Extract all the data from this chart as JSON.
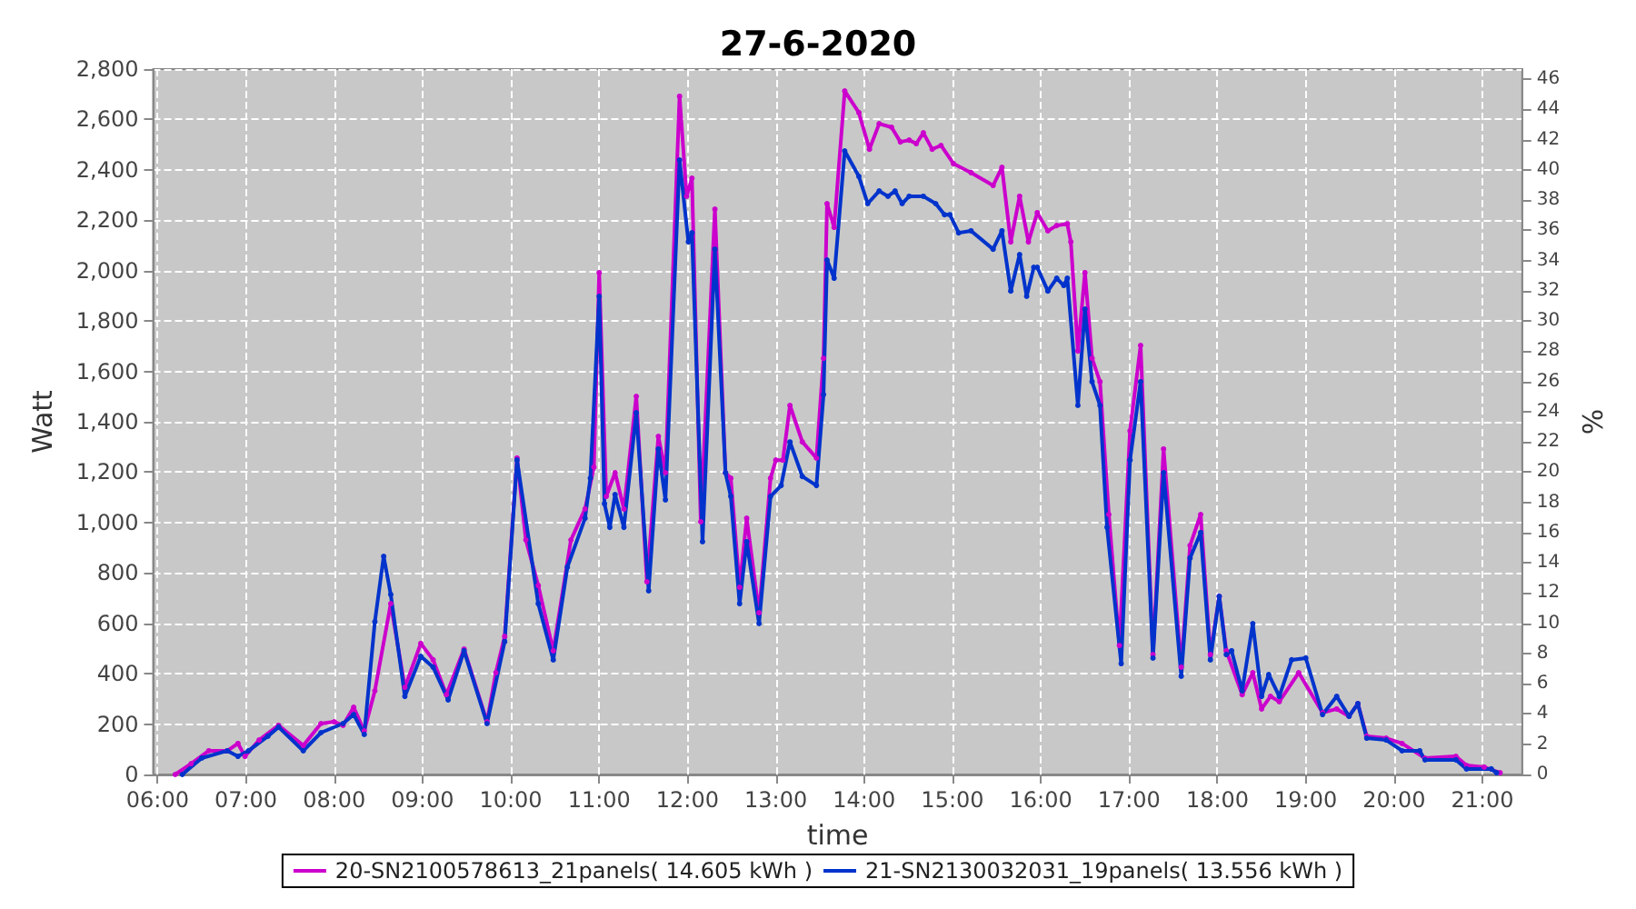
{
  "chart_data": {
    "type": "line",
    "title": "27-6-2020",
    "xlabel": "time",
    "ylabel": "Watt",
    "y2label": "%",
    "xlim": [
      5.95,
      21.45
    ],
    "xticks": [
      {
        "value": 6,
        "label": "06:00"
      },
      {
        "value": 7,
        "label": "07:00"
      },
      {
        "value": 8,
        "label": "08:00"
      },
      {
        "value": 9,
        "label": "09:00"
      },
      {
        "value": 10,
        "label": "10:00"
      },
      {
        "value": 11,
        "label": "11:00"
      },
      {
        "value": 12,
        "label": "12:00"
      },
      {
        "value": 13,
        "label": "13:00"
      },
      {
        "value": 14,
        "label": "14:00"
      },
      {
        "value": 15,
        "label": "15:00"
      },
      {
        "value": 16,
        "label": "16:00"
      },
      {
        "value": 17,
        "label": "17:00"
      },
      {
        "value": 18,
        "label": "18:00"
      },
      {
        "value": 19,
        "label": "19:00"
      },
      {
        "value": 20,
        "label": "20:00"
      },
      {
        "value": 21,
        "label": "21:00"
      }
    ],
    "ylim": [
      0,
      2800
    ],
    "yticks": [
      0,
      200,
      400,
      600,
      800,
      {
        "value": 1000,
        "label": "1,000"
      },
      {
        "value": 1200,
        "label": "1,200"
      },
      {
        "value": 1400,
        "label": "1,400"
      },
      {
        "value": 1600,
        "label": "1,600"
      },
      {
        "value": 1800,
        "label": "1,800"
      },
      {
        "value": 2000,
        "label": "2,000"
      },
      {
        "value": 2200,
        "label": "2,200"
      },
      {
        "value": 2400,
        "label": "2,400"
      },
      {
        "value": 2600,
        "label": "2,600"
      },
      {
        "value": 2800,
        "label": "2,800"
      }
    ],
    "y2lim": [
      0,
      46.67
    ],
    "y2ticks": [
      0,
      2,
      4,
      6,
      8,
      10,
      12,
      14,
      16,
      18,
      20,
      22,
      24,
      26,
      28,
      30,
      32,
      34,
      36,
      38,
      40,
      42,
      44,
      46
    ],
    "grid": true,
    "legend": "bottom",
    "marker": "circle",
    "line_style": "solid",
    "series": [
      {
        "name": "20-SN2100578613_21panels( 14.605 kWh )",
        "color": "#cc00cc",
        "x": [
          6.2,
          6.38,
          6.58,
          6.79,
          6.91,
          6.99,
          7.15,
          7.37,
          7.65,
          7.85,
          8.0,
          8.1,
          8.22,
          8.34,
          8.46,
          8.64,
          8.8,
          8.98,
          9.12,
          9.27,
          9.47,
          9.73,
          9.83,
          9.93,
          10.07,
          10.17,
          10.31,
          10.48,
          10.68,
          10.84,
          10.94,
          11.0,
          11.08,
          11.18,
          11.28,
          11.42,
          11.54,
          11.67,
          11.75,
          11.91,
          11.99,
          12.05,
          12.15,
          12.31,
          12.43,
          12.49,
          12.59,
          12.67,
          12.81,
          12.94,
          13.0,
          13.08,
          13.16,
          13.3,
          13.46,
          13.54,
          13.58,
          13.66,
          13.78,
          13.94,
          14.06,
          14.17,
          14.31,
          14.41,
          14.51,
          14.59,
          14.67,
          14.77,
          14.87,
          15.01,
          15.21,
          15.46,
          15.56,
          15.66,
          15.76,
          15.86,
          15.96,
          16.08,
          16.18,
          16.3,
          16.34,
          16.42,
          16.5,
          16.58,
          16.67,
          16.77,
          16.89,
          17.01,
          17.13,
          17.27,
          17.39,
          17.59,
          17.69,
          17.81,
          17.92,
          18.02,
          18.1,
          18.28,
          18.4,
          18.5,
          18.6,
          18.7,
          18.92,
          19.19,
          19.35,
          19.49,
          19.59,
          19.69,
          19.91,
          20.09,
          20.35,
          20.7,
          20.82,
          21.02,
          21.2
        ],
        "values": [
          0,
          43,
          94,
          94,
          123,
          72,
          137,
          195,
          115,
          202,
          209,
          195,
          267,
          173,
          332,
          678,
          346,
          520,
          455,
          317,
          498,
          209,
          404,
          548,
          1256,
          931,
          750,
          491,
          931,
          1054,
          1220,
          1992,
          1104,
          1198,
          1054,
          1501,
          765,
          1342,
          1198,
          2692,
          2295,
          2367,
          1003,
          2244,
          1198,
          1176,
          743,
          1017,
          642,
          1176,
          1248,
          1248,
          1465,
          1320,
          1256,
          1652,
          2266,
          2172,
          2713,
          2627,
          2482,
          2583,
          2569,
          2511,
          2518,
          2504,
          2547,
          2482,
          2497,
          2425,
          2389,
          2338,
          2410,
          2114,
          2295,
          2114,
          2230,
          2158,
          2179,
          2186,
          2114,
          1681,
          1992,
          1652,
          1559,
          1032,
          512,
          1364,
          1703,
          476,
          1292,
          426,
          909,
          1032,
          476,
          707,
          491,
          317,
          404,
          260,
          310,
          289,
          404,
          245,
          260,
          231,
          281,
          152,
          144,
          123,
          65,
          72,
          36,
          29,
          7
        ]
      },
      {
        "name": "21-SN2130032031_19panels( 13.556 kWh )",
        "color": "#0033cc",
        "x": [
          6.28,
          6.5,
          6.79,
          6.91,
          7.03,
          7.25,
          7.37,
          7.65,
          7.85,
          8.1,
          8.22,
          8.34,
          8.46,
          8.56,
          8.64,
          8.8,
          8.98,
          9.12,
          9.29,
          9.47,
          9.73,
          9.93,
          10.07,
          10.31,
          10.48,
          10.64,
          10.84,
          10.9,
          11.0,
          11.06,
          11.12,
          11.18,
          11.28,
          11.42,
          11.56,
          11.67,
          11.75,
          11.91,
          12.01,
          12.05,
          12.17,
          12.31,
          12.43,
          12.49,
          12.59,
          12.67,
          12.81,
          12.94,
          13.06,
          13.16,
          13.3,
          13.46,
          13.54,
          13.58,
          13.66,
          13.78,
          13.94,
          14.04,
          14.17,
          14.27,
          14.35,
          14.43,
          14.51,
          14.67,
          14.81,
          14.91,
          14.97,
          15.07,
          15.21,
          15.46,
          15.56,
          15.66,
          15.76,
          15.84,
          15.92,
          15.96,
          16.08,
          16.18,
          16.26,
          16.3,
          16.42,
          16.5,
          16.58,
          16.67,
          16.75,
          16.91,
          17.01,
          17.13,
          17.27,
          17.39,
          17.59,
          17.69,
          17.81,
          17.92,
          18.02,
          18.1,
          18.16,
          18.28,
          18.4,
          18.5,
          18.58,
          18.7,
          18.84,
          19.0,
          19.19,
          19.35,
          19.49,
          19.59,
          19.69,
          19.91,
          20.09,
          20.29,
          20.35,
          20.7,
          20.82,
          21.1,
          21.16
        ],
        "values": [
          0,
          65,
          94,
          72,
          94,
          152,
          188,
          94,
          166,
          202,
          238,
          159,
          606,
          866,
          714,
          310,
          469,
          426,
          296,
          491,
          202,
          527,
          1248,
          678,
          455,
          823,
          1017,
          1176,
          1898,
          1075,
          981,
          1111,
          981,
          1436,
          729,
          1292,
          1090,
          2439,
          2114,
          2150,
          924,
          2085,
          1198,
          1104,
          678,
          924,
          599,
          1104,
          1147,
          1320,
          1183,
          1147,
          1508,
          2042,
          1970,
          2475,
          2374,
          2266,
          2316,
          2295,
          2316,
          2266,
          2295,
          2295,
          2266,
          2222,
          2222,
          2150,
          2158,
          2085,
          2158,
          1919,
          2064,
          1898,
          2013,
          2013,
          1919,
          1970,
          1941,
          1970,
          1465,
          1847,
          1559,
          1465,
          981,
          440,
          1248,
          1559,
          462,
          1198,
          390,
          859,
          960,
          455,
          707,
          476,
          491,
          332,
          599,
          310,
          397,
          310,
          455,
          462,
          238,
          310,
          231,
          281,
          144,
          137,
          94,
          94,
          58,
          58,
          22,
          22,
          7
        ]
      }
    ]
  }
}
